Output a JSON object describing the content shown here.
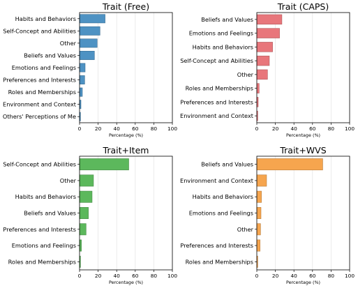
{
  "chart_data": [
    {
      "type": "bar",
      "orientation": "horizontal",
      "title": "Trait (Free)",
      "xlabel": "Percentage (%)",
      "ylabel": "",
      "xlim": [
        0,
        100
      ],
      "xticks": [
        "0",
        "20",
        "40",
        "60",
        "80",
        "100"
      ],
      "grid": "vertical",
      "color": "#4e92c3",
      "categories": [
        "Habits and Behaviors",
        "Self-Concept and Abilities",
        "Other",
        "Beliefs and Values",
        "Emotions and Feelings",
        "Preferences and Interests",
        "Roles and Memberships",
        "Environment and Context",
        "Others' Perceptions of Me"
      ],
      "values": [
        27.5,
        22,
        19,
        16,
        6,
        5.5,
        3,
        1.5,
        1
      ]
    },
    {
      "type": "bar",
      "orientation": "horizontal",
      "title": "Trait (CAPS)",
      "xlabel": "Percentage (%)",
      "ylabel": "",
      "xlim": [
        0,
        100
      ],
      "xticks": [
        "0",
        "20",
        "40",
        "60",
        "80",
        "100"
      ],
      "grid": "vertical",
      "color": "#e8767b",
      "categories": [
        "Beliefs and Values",
        "Emotions and Feelings",
        "Habits and Behaviors",
        "Self-Concept and Abilities",
        "Other",
        "Roles and Memberships",
        "Preferences and Interests",
        "Environment and Context"
      ],
      "values": [
        27,
        24.5,
        17,
        13.5,
        11.5,
        2.5,
        1.5,
        1
      ]
    },
    {
      "type": "bar",
      "orientation": "horizontal",
      "title": "Trait+Item",
      "xlabel": "Percentage (%)",
      "ylabel": "",
      "xlim": [
        0,
        100
      ],
      "xticks": [
        "0",
        "20",
        "40",
        "60",
        "80",
        "100"
      ],
      "grid": "vertical",
      "color": "#5cb85c",
      "categories": [
        "Self-Concept and Abilities",
        "Other",
        "Habits and Behaviors",
        "Beliefs and Values",
        "Preferences and Interests",
        "Emotions and Feelings",
        "Roles and Memberships"
      ],
      "values": [
        53,
        15,
        13.5,
        9.5,
        7,
        2,
        1
      ]
    },
    {
      "type": "bar",
      "orientation": "horizontal",
      "title": "Trait+WVS",
      "xlabel": "Percentage (%)",
      "ylabel": "",
      "xlim": [
        0,
        100
      ],
      "xticks": [
        "0",
        "20",
        "40",
        "60",
        "80",
        "100"
      ],
      "grid": "vertical",
      "color": "#f6a54e",
      "categories": [
        "Beliefs and Values",
        "Environment and Context",
        "Habits and Behaviors",
        "Emotions and Feelings",
        "Other",
        "Preferences and Interests",
        "Roles and Memberships"
      ],
      "values": [
        71,
        10.5,
        5,
        4.5,
        4,
        3.5,
        1
      ]
    }
  ]
}
